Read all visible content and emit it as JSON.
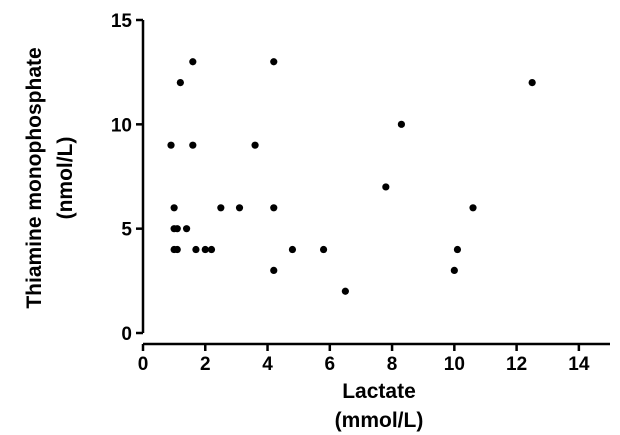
{
  "chart_data": {
    "type": "scatter",
    "xlabel_lines": [
      "Lactate",
      "(mmol/L)"
    ],
    "ylabel_lines": [
      "Thiamine monophosphate",
      "(nmol/L)"
    ],
    "xlim": [
      0,
      15
    ],
    "ylim": [
      0,
      15
    ],
    "x_ticks": [
      0,
      2,
      4,
      6,
      8,
      10,
      12,
      14
    ],
    "y_ticks": [
      0,
      5,
      10,
      15
    ],
    "grid": false,
    "legend": "none",
    "point_color": "#000000",
    "points": [
      {
        "x": 0.9,
        "y": 9
      },
      {
        "x": 1.0,
        "y": 6
      },
      {
        "x": 1.0,
        "y": 5
      },
      {
        "x": 1.1,
        "y": 5
      },
      {
        "x": 1.0,
        "y": 4
      },
      {
        "x": 1.1,
        "y": 4
      },
      {
        "x": 1.2,
        "y": 12
      },
      {
        "x": 1.4,
        "y": 5
      },
      {
        "x": 1.6,
        "y": 13
      },
      {
        "x": 1.6,
        "y": 9
      },
      {
        "x": 1.7,
        "y": 4
      },
      {
        "x": 2.0,
        "y": 4
      },
      {
        "x": 2.2,
        "y": 4
      },
      {
        "x": 2.5,
        "y": 6
      },
      {
        "x": 3.1,
        "y": 6
      },
      {
        "x": 3.6,
        "y": 9
      },
      {
        "x": 4.2,
        "y": 13
      },
      {
        "x": 4.2,
        "y": 6
      },
      {
        "x": 4.2,
        "y": 3
      },
      {
        "x": 4.8,
        "y": 4
      },
      {
        "x": 5.8,
        "y": 4
      },
      {
        "x": 6.5,
        "y": 2
      },
      {
        "x": 7.8,
        "y": 7
      },
      {
        "x": 8.3,
        "y": 10
      },
      {
        "x": 10.0,
        "y": 3
      },
      {
        "x": 10.1,
        "y": 4
      },
      {
        "x": 10.6,
        "y": 6
      },
      {
        "x": 12.5,
        "y": 12
      }
    ]
  }
}
